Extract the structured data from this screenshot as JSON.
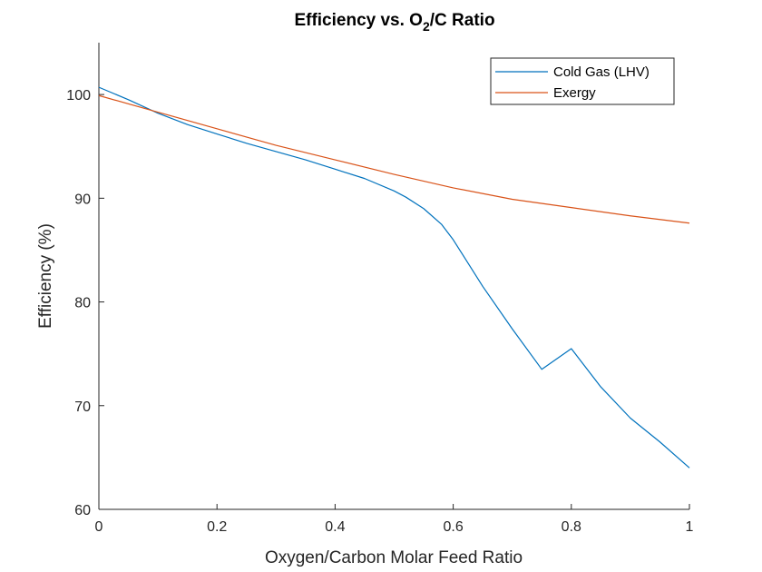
{
  "chart_data": {
    "type": "line",
    "title_parts": {
      "main": "Efficiency vs. O",
      "sub": "2",
      "rest": "/C Ratio"
    },
    "xlabel": "Oxygen/Carbon Molar Feed Ratio",
    "ylabel": "Efficiency (%)",
    "xlim": [
      0,
      1
    ],
    "ylim": [
      60,
      105
    ],
    "xticks": [
      0,
      0.2,
      0.4,
      0.6,
      0.8,
      1
    ],
    "xtick_labels": [
      "0",
      "0.2",
      "0.4",
      "0.6",
      "0.8",
      "1"
    ],
    "yticks": [
      60,
      70,
      80,
      90,
      100
    ],
    "ytick_labels": [
      "60",
      "70",
      "80",
      "90",
      "100"
    ],
    "grid": false,
    "legend_position": "top-right",
    "series": [
      {
        "name": "Cold Gas (LHV)",
        "color": "#0072BD",
        "x": [
          0,
          0.05,
          0.1,
          0.15,
          0.2,
          0.25,
          0.3,
          0.35,
          0.4,
          0.45,
          0.5,
          0.52,
          0.55,
          0.58,
          0.6,
          0.62,
          0.65,
          0.7,
          0.75,
          0.8,
          0.85,
          0.9,
          0.95,
          1.0
        ],
        "y": [
          100.7,
          99.5,
          98.2,
          97.1,
          96.2,
          95.3,
          94.5,
          93.7,
          92.8,
          91.9,
          90.7,
          90.1,
          89.0,
          87.5,
          86.0,
          84.2,
          81.5,
          77.4,
          73.5,
          75.5,
          71.8,
          68.8,
          66.5,
          64.0
        ]
      },
      {
        "name": "Exergy",
        "color": "#D95319",
        "x": [
          0,
          0.1,
          0.2,
          0.3,
          0.4,
          0.5,
          0.6,
          0.7,
          0.8,
          0.9,
          1.0
        ],
        "y": [
          99.9,
          98.3,
          96.7,
          95.1,
          93.7,
          92.3,
          91.0,
          89.9,
          89.1,
          88.3,
          87.6
        ]
      }
    ]
  }
}
